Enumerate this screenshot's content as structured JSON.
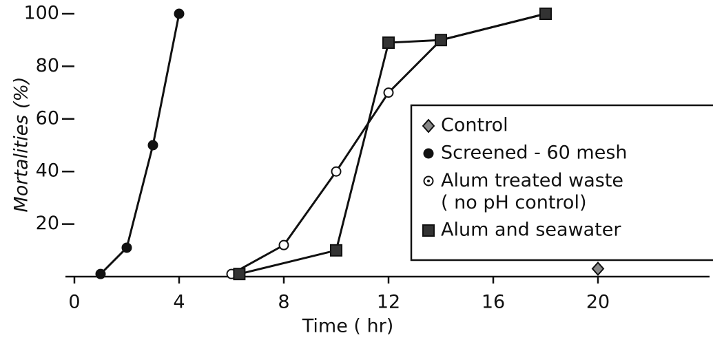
{
  "chart_data": {
    "type": "line",
    "x_label": "Time ( hr)",
    "y_label": "Mortalities (%)",
    "xlim": [
      0,
      24
    ],
    "ylim": [
      0,
      100
    ],
    "xticks": [
      0,
      4,
      8,
      12,
      16,
      20
    ],
    "yticks": [
      20,
      40,
      60,
      80,
      100
    ],
    "series": [
      {
        "name": "Control",
        "color": "#888888",
        "marker": "diamond",
        "x": [
          20
        ],
        "values": [
          3
        ]
      },
      {
        "name": "Screened - 60 mesh",
        "color": "#111111",
        "marker": "circle",
        "x": [
          1,
          2,
          3,
          4
        ],
        "values": [
          1,
          11,
          50,
          100
        ]
      },
      {
        "name": "Alum treated waste ( no pH control)",
        "color": "#ffffff",
        "marker": "open-circle",
        "x": [
          6,
          8,
          10,
          12,
          14,
          18
        ],
        "values": [
          1,
          12,
          40,
          70,
          90,
          100
        ]
      },
      {
        "name": "Alum and seawater",
        "color": "#333333",
        "marker": "square",
        "x": [
          6.3,
          10,
          12,
          14,
          18
        ],
        "values": [
          1,
          10,
          89,
          90,
          100
        ]
      }
    ]
  }
}
